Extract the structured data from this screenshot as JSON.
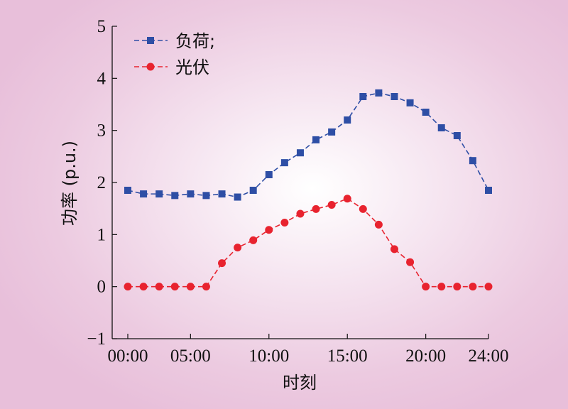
{
  "chart_data": {
    "type": "line",
    "xlabel": "时刻",
    "ylabel": "功率 (p.u.)",
    "xlim": [
      1,
      24
    ],
    "ylim": [
      -1,
      5
    ],
    "x_ticks": [
      1,
      5,
      10,
      15,
      20,
      24
    ],
    "x_tick_labels": [
      "00:00",
      "05:00",
      "10:00",
      "15:00",
      "20:00",
      "24:00"
    ],
    "y_ticks": [
      -1,
      0,
      1,
      2,
      3,
      4,
      5
    ],
    "y_tick_labels": [
      "−1",
      "0",
      "1",
      "2",
      "3",
      "4",
      "5"
    ],
    "x": [
      1,
      2,
      3,
      4,
      5,
      6,
      7,
      8,
      9,
      10,
      11,
      12,
      13,
      14,
      15,
      16,
      17,
      18,
      19,
      20,
      21,
      22,
      23,
      24
    ],
    "grid": false,
    "legend_position": "top-left",
    "series": [
      {
        "name": "负荷;",
        "color": "#2e4ea5",
        "marker": "square",
        "line_style": "dashed",
        "values": [
          1.85,
          1.78,
          1.78,
          1.75,
          1.78,
          1.75,
          1.78,
          1.72,
          1.85,
          2.15,
          2.38,
          2.57,
          2.82,
          2.97,
          3.2,
          3.65,
          3.72,
          3.65,
          3.53,
          3.35,
          3.05,
          2.9,
          2.42,
          1.85
        ]
      },
      {
        "name": "光伏",
        "color": "#e8232f",
        "marker": "circle",
        "line_style": "dashed",
        "values": [
          0,
          0,
          0,
          0,
          0,
          0,
          0.45,
          0.75,
          0.89,
          1.09,
          1.23,
          1.4,
          1.49,
          1.57,
          1.69,
          1.49,
          1.19,
          0.72,
          0.47,
          0,
          0,
          0,
          0,
          0
        ]
      }
    ]
  }
}
